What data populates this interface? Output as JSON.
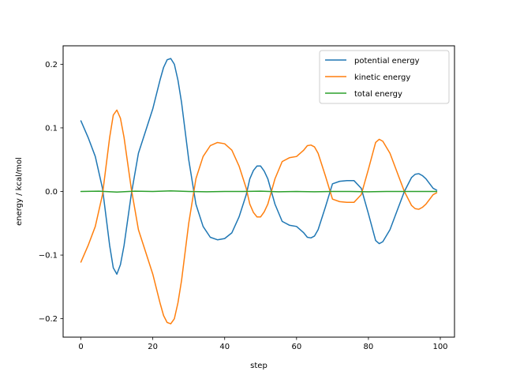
{
  "chart_data": {
    "type": "line",
    "title": "",
    "xlabel": "step",
    "ylabel": "energy / kcal/mol",
    "xlim": [
      -4.95,
      103.95
    ],
    "ylim": [
      -0.229,
      0.229
    ],
    "xticks": [
      0,
      20,
      40,
      60,
      80,
      100
    ],
    "yticks": [
      -0.2,
      -0.1,
      0.0,
      0.1,
      0.2
    ],
    "xtick_labels": [
      "0",
      "20",
      "40",
      "60",
      "80",
      "100"
    ],
    "ytick_labels": [
      "−0.2",
      "−0.1",
      "0.0",
      "0.1",
      "0.2"
    ],
    "grid": false,
    "legend_position": "top-right",
    "series": [
      {
        "name": "potential energy",
        "color": "#1f77b4",
        "x": [
          0,
          2,
          4,
          6,
          7,
          8,
          9,
          10,
          11,
          12,
          14,
          16,
          18,
          20,
          22,
          23,
          24,
          25,
          26,
          27,
          28,
          30,
          32,
          34,
          36,
          38,
          40,
          42,
          44,
          46,
          47,
          48,
          49,
          50,
          51,
          52,
          53,
          54,
          56,
          58,
          60,
          62,
          63,
          64,
          65,
          66,
          68,
          70,
          72,
          74,
          76,
          78,
          80,
          82,
          83,
          84,
          86,
          88,
          90,
          92,
          93,
          94,
          95,
          96,
          98,
          99
        ],
        "y": [
          0.111,
          0.085,
          0.055,
          0.005,
          -0.04,
          -0.085,
          -0.12,
          -0.13,
          -0.115,
          -0.085,
          -0.005,
          0.06,
          0.095,
          0.13,
          0.175,
          0.195,
          0.207,
          0.209,
          0.2,
          0.175,
          0.14,
          0.05,
          -0.02,
          -0.055,
          -0.072,
          -0.076,
          -0.074,
          -0.065,
          -0.04,
          -0.005,
          0.02,
          0.033,
          0.04,
          0.04,
          0.032,
          0.02,
          0.0,
          -0.02,
          -0.047,
          -0.053,
          -0.055,
          -0.065,
          -0.072,
          -0.073,
          -0.07,
          -0.06,
          -0.025,
          0.012,
          0.016,
          0.017,
          0.017,
          0.005,
          -0.035,
          -0.077,
          -0.082,
          -0.079,
          -0.06,
          -0.03,
          0.0,
          0.022,
          0.027,
          0.028,
          0.025,
          0.02,
          0.005,
          0.002
        ]
      },
      {
        "name": "kinetic energy",
        "color": "#ff7f0e",
        "x": [
          0,
          2,
          4,
          6,
          7,
          8,
          9,
          10,
          11,
          12,
          14,
          16,
          18,
          20,
          22,
          23,
          24,
          25,
          26,
          27,
          28,
          30,
          32,
          34,
          36,
          38,
          40,
          42,
          44,
          46,
          47,
          48,
          49,
          50,
          51,
          52,
          53,
          54,
          56,
          58,
          60,
          62,
          63,
          64,
          65,
          66,
          68,
          70,
          72,
          74,
          76,
          78,
          80,
          82,
          83,
          84,
          86,
          88,
          90,
          92,
          93,
          94,
          95,
          96,
          98,
          99
        ],
        "y": [
          -0.111,
          -0.085,
          -0.055,
          -0.005,
          0.04,
          0.085,
          0.12,
          0.128,
          0.115,
          0.085,
          0.005,
          -0.06,
          -0.095,
          -0.13,
          -0.175,
          -0.195,
          -0.206,
          -0.208,
          -0.2,
          -0.175,
          -0.14,
          -0.05,
          0.02,
          0.055,
          0.072,
          0.077,
          0.075,
          0.065,
          0.04,
          0.005,
          -0.02,
          -0.033,
          -0.04,
          -0.04,
          -0.032,
          -0.02,
          0.0,
          0.02,
          0.047,
          0.053,
          0.055,
          0.065,
          0.072,
          0.073,
          0.07,
          0.06,
          0.025,
          -0.012,
          -0.016,
          -0.017,
          -0.017,
          -0.005,
          0.035,
          0.077,
          0.082,
          0.079,
          0.06,
          0.03,
          0.0,
          -0.022,
          -0.027,
          -0.028,
          -0.025,
          -0.02,
          -0.005,
          -0.002
        ]
      },
      {
        "name": "total energy",
        "color": "#2ca02c",
        "x": [
          0,
          5,
          10,
          15,
          20,
          25,
          30,
          35,
          40,
          45,
          50,
          55,
          60,
          65,
          70,
          75,
          80,
          85,
          90,
          95,
          99
        ],
        "y": [
          0.0,
          0.0005,
          -0.001,
          0.0005,
          0.0,
          0.001,
          0.0,
          -0.0005,
          0.0,
          0.0,
          0.0005,
          -0.0005,
          0.0,
          -0.0005,
          0.0,
          0.0,
          -0.0005,
          0.0,
          0.0,
          0.0,
          0.0
        ]
      }
    ]
  }
}
